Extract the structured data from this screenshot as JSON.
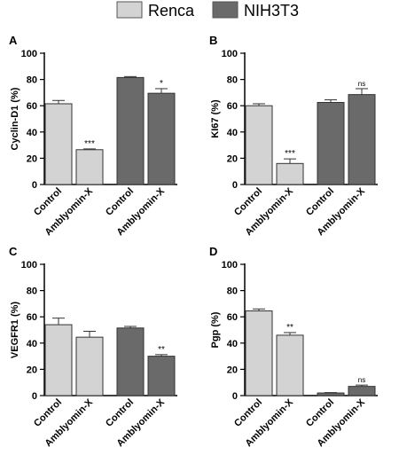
{
  "legend": {
    "items": [
      {
        "label": "Renca",
        "color": "#d3d3d3"
      },
      {
        "label": "NIH3T3",
        "color": "#6a6a6a"
      }
    ]
  },
  "colors": {
    "edge": "#333333",
    "axis": "#000000"
  },
  "chart_data": [
    {
      "type": "bar",
      "panel_letter": "A",
      "ylabel": "Cyclin-D1 (%)",
      "ylim": [
        0,
        100
      ],
      "yticks": [
        0,
        20,
        40,
        60,
        80,
        100
      ],
      "categories": [
        "Control",
        "Amblyomin-X",
        "Control",
        "Amblyomin-X"
      ],
      "groups": [
        "Renca",
        "Renca",
        "NIH3T3",
        "NIH3T3"
      ],
      "values": [
        61.5,
        26.5,
        81.5,
        69.5
      ],
      "errors": [
        2.5,
        0.6,
        0.7,
        3.5
      ],
      "significance": [
        "",
        "***",
        "",
        "*"
      ]
    },
    {
      "type": "bar",
      "panel_letter": "B",
      "ylabel": "KI67 (%)",
      "ylim": [
        0,
        100
      ],
      "yticks": [
        0,
        20,
        40,
        60,
        80,
        100
      ],
      "categories": [
        "Control",
        "Amblyomin-X",
        "Control",
        "Amblyomin-X"
      ],
      "groups": [
        "Renca",
        "Renca",
        "NIH3T3",
        "NIH3T3"
      ],
      "values": [
        60,
        16,
        62.5,
        68.5
      ],
      "errors": [
        1.5,
        3.5,
        2.0,
        4.5
      ],
      "significance": [
        "",
        "***",
        "",
        "ns"
      ]
    },
    {
      "type": "bar",
      "panel_letter": "C",
      "ylabel": "VEGFR1 (%)",
      "ylim": [
        0,
        100
      ],
      "yticks": [
        0,
        20,
        40,
        60,
        80,
        100
      ],
      "categories": [
        "Control",
        "Amblyomin-X",
        "Control",
        "Amblyomin-X"
      ],
      "groups": [
        "Renca",
        "Renca",
        "NIH3T3",
        "NIH3T3"
      ],
      "values": [
        54,
        44.5,
        51.5,
        30
      ],
      "errors": [
        5.0,
        4.5,
        1.2,
        1.2
      ],
      "significance": [
        "",
        "",
        "",
        "**"
      ]
    },
    {
      "type": "bar",
      "panel_letter": "D",
      "ylabel": "Pgp (%)",
      "ylim": [
        0,
        100
      ],
      "yticks": [
        0,
        20,
        40,
        60,
        80,
        100
      ],
      "categories": [
        "Control",
        "Amblyomin-X",
        "Control",
        "Amblyomin-X"
      ],
      "groups": [
        "Renca",
        "Renca",
        "NIH3T3",
        "NIH3T3"
      ],
      "values": [
        64.5,
        46,
        2,
        7
      ],
      "errors": [
        1.5,
        2.0,
        0.3,
        1.0
      ],
      "significance": [
        "",
        "**",
        "",
        "ns"
      ]
    }
  ]
}
